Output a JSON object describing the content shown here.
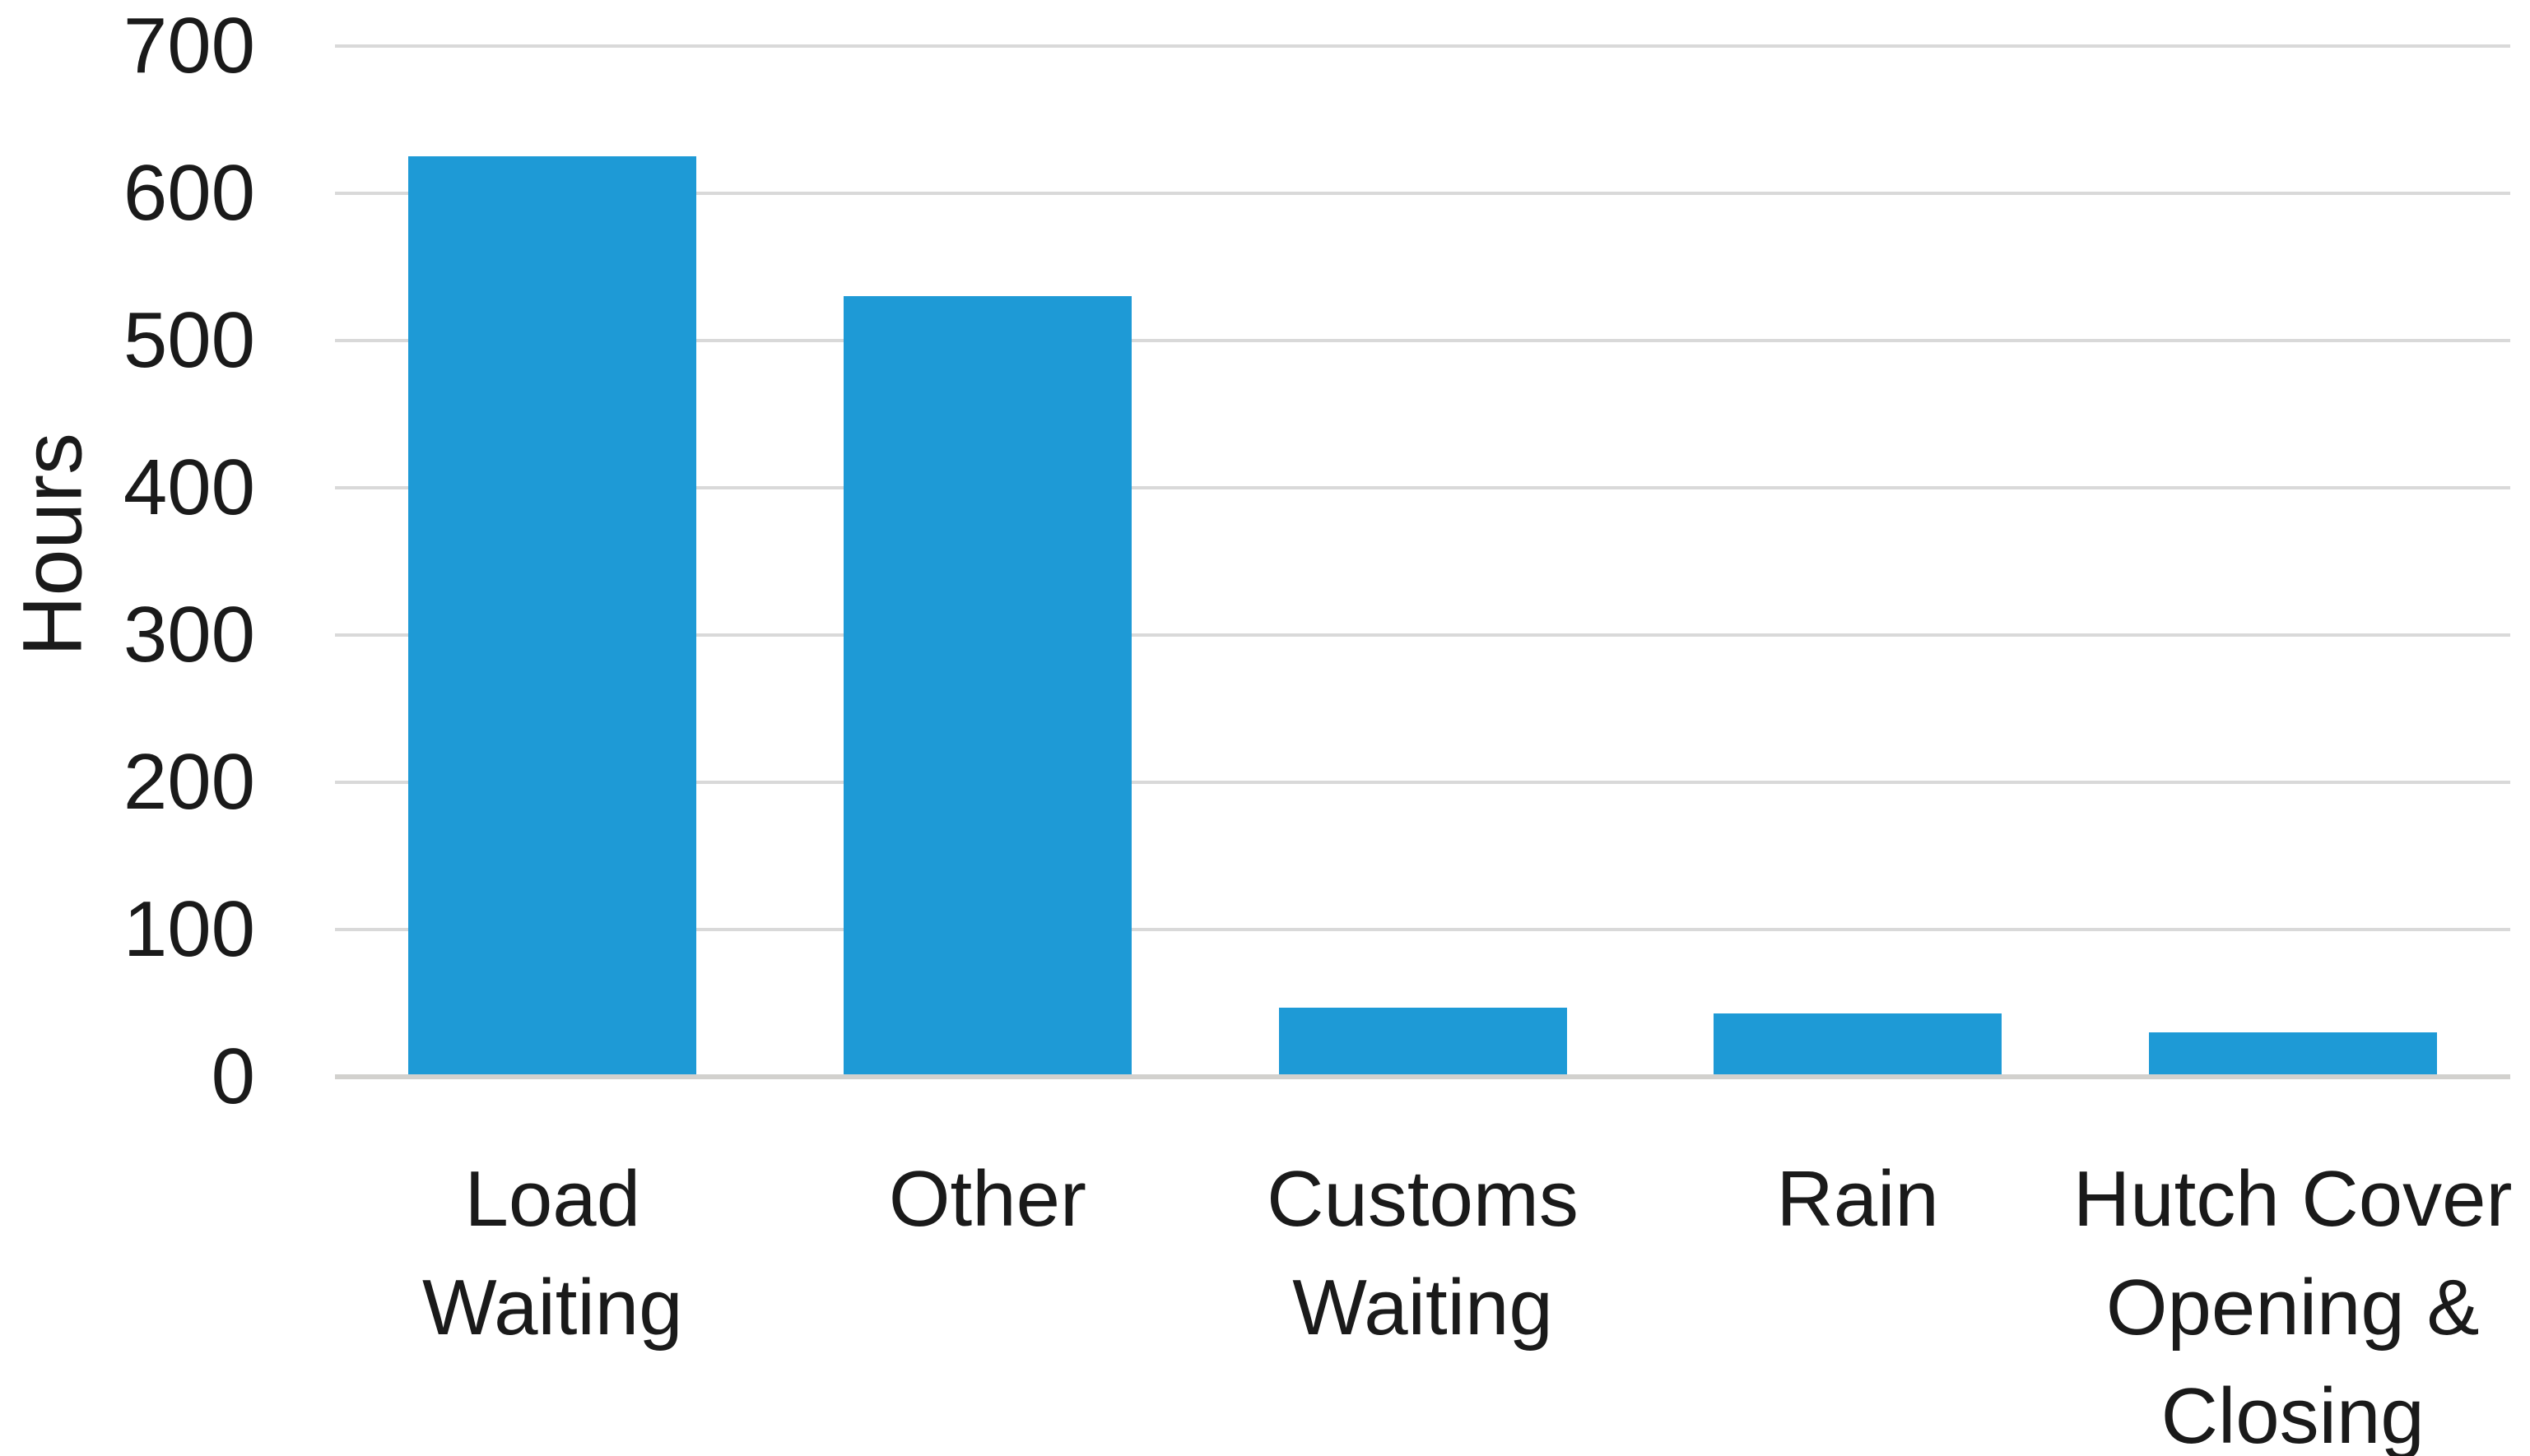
{
  "chart_data": {
    "type": "bar",
    "title": "",
    "xlabel": "",
    "ylabel": "Hours",
    "categories": [
      "Load\nWaiting",
      "Other",
      "Customs\nWaiting",
      "Rain",
      "Hutch Cover\nOpening &\nClosing"
    ],
    "category_names": [
      "Load Waiting",
      "Other",
      "Customs Waiting",
      "Rain",
      "Hutch Cover Opening & Closing"
    ],
    "values": [
      625,
      530,
      47,
      43,
      30
    ],
    "ylim": [
      0,
      700
    ],
    "yticks": [
      0,
      100,
      200,
      300,
      400,
      500,
      600,
      700
    ],
    "grid": "horizontal-major",
    "legend": "none",
    "bar_color": "#1e9ad6",
    "gridline_color": "#d9d9d9",
    "baseline_color": "#d2d1ce",
    "text_color": "#1a1a1a"
  }
}
